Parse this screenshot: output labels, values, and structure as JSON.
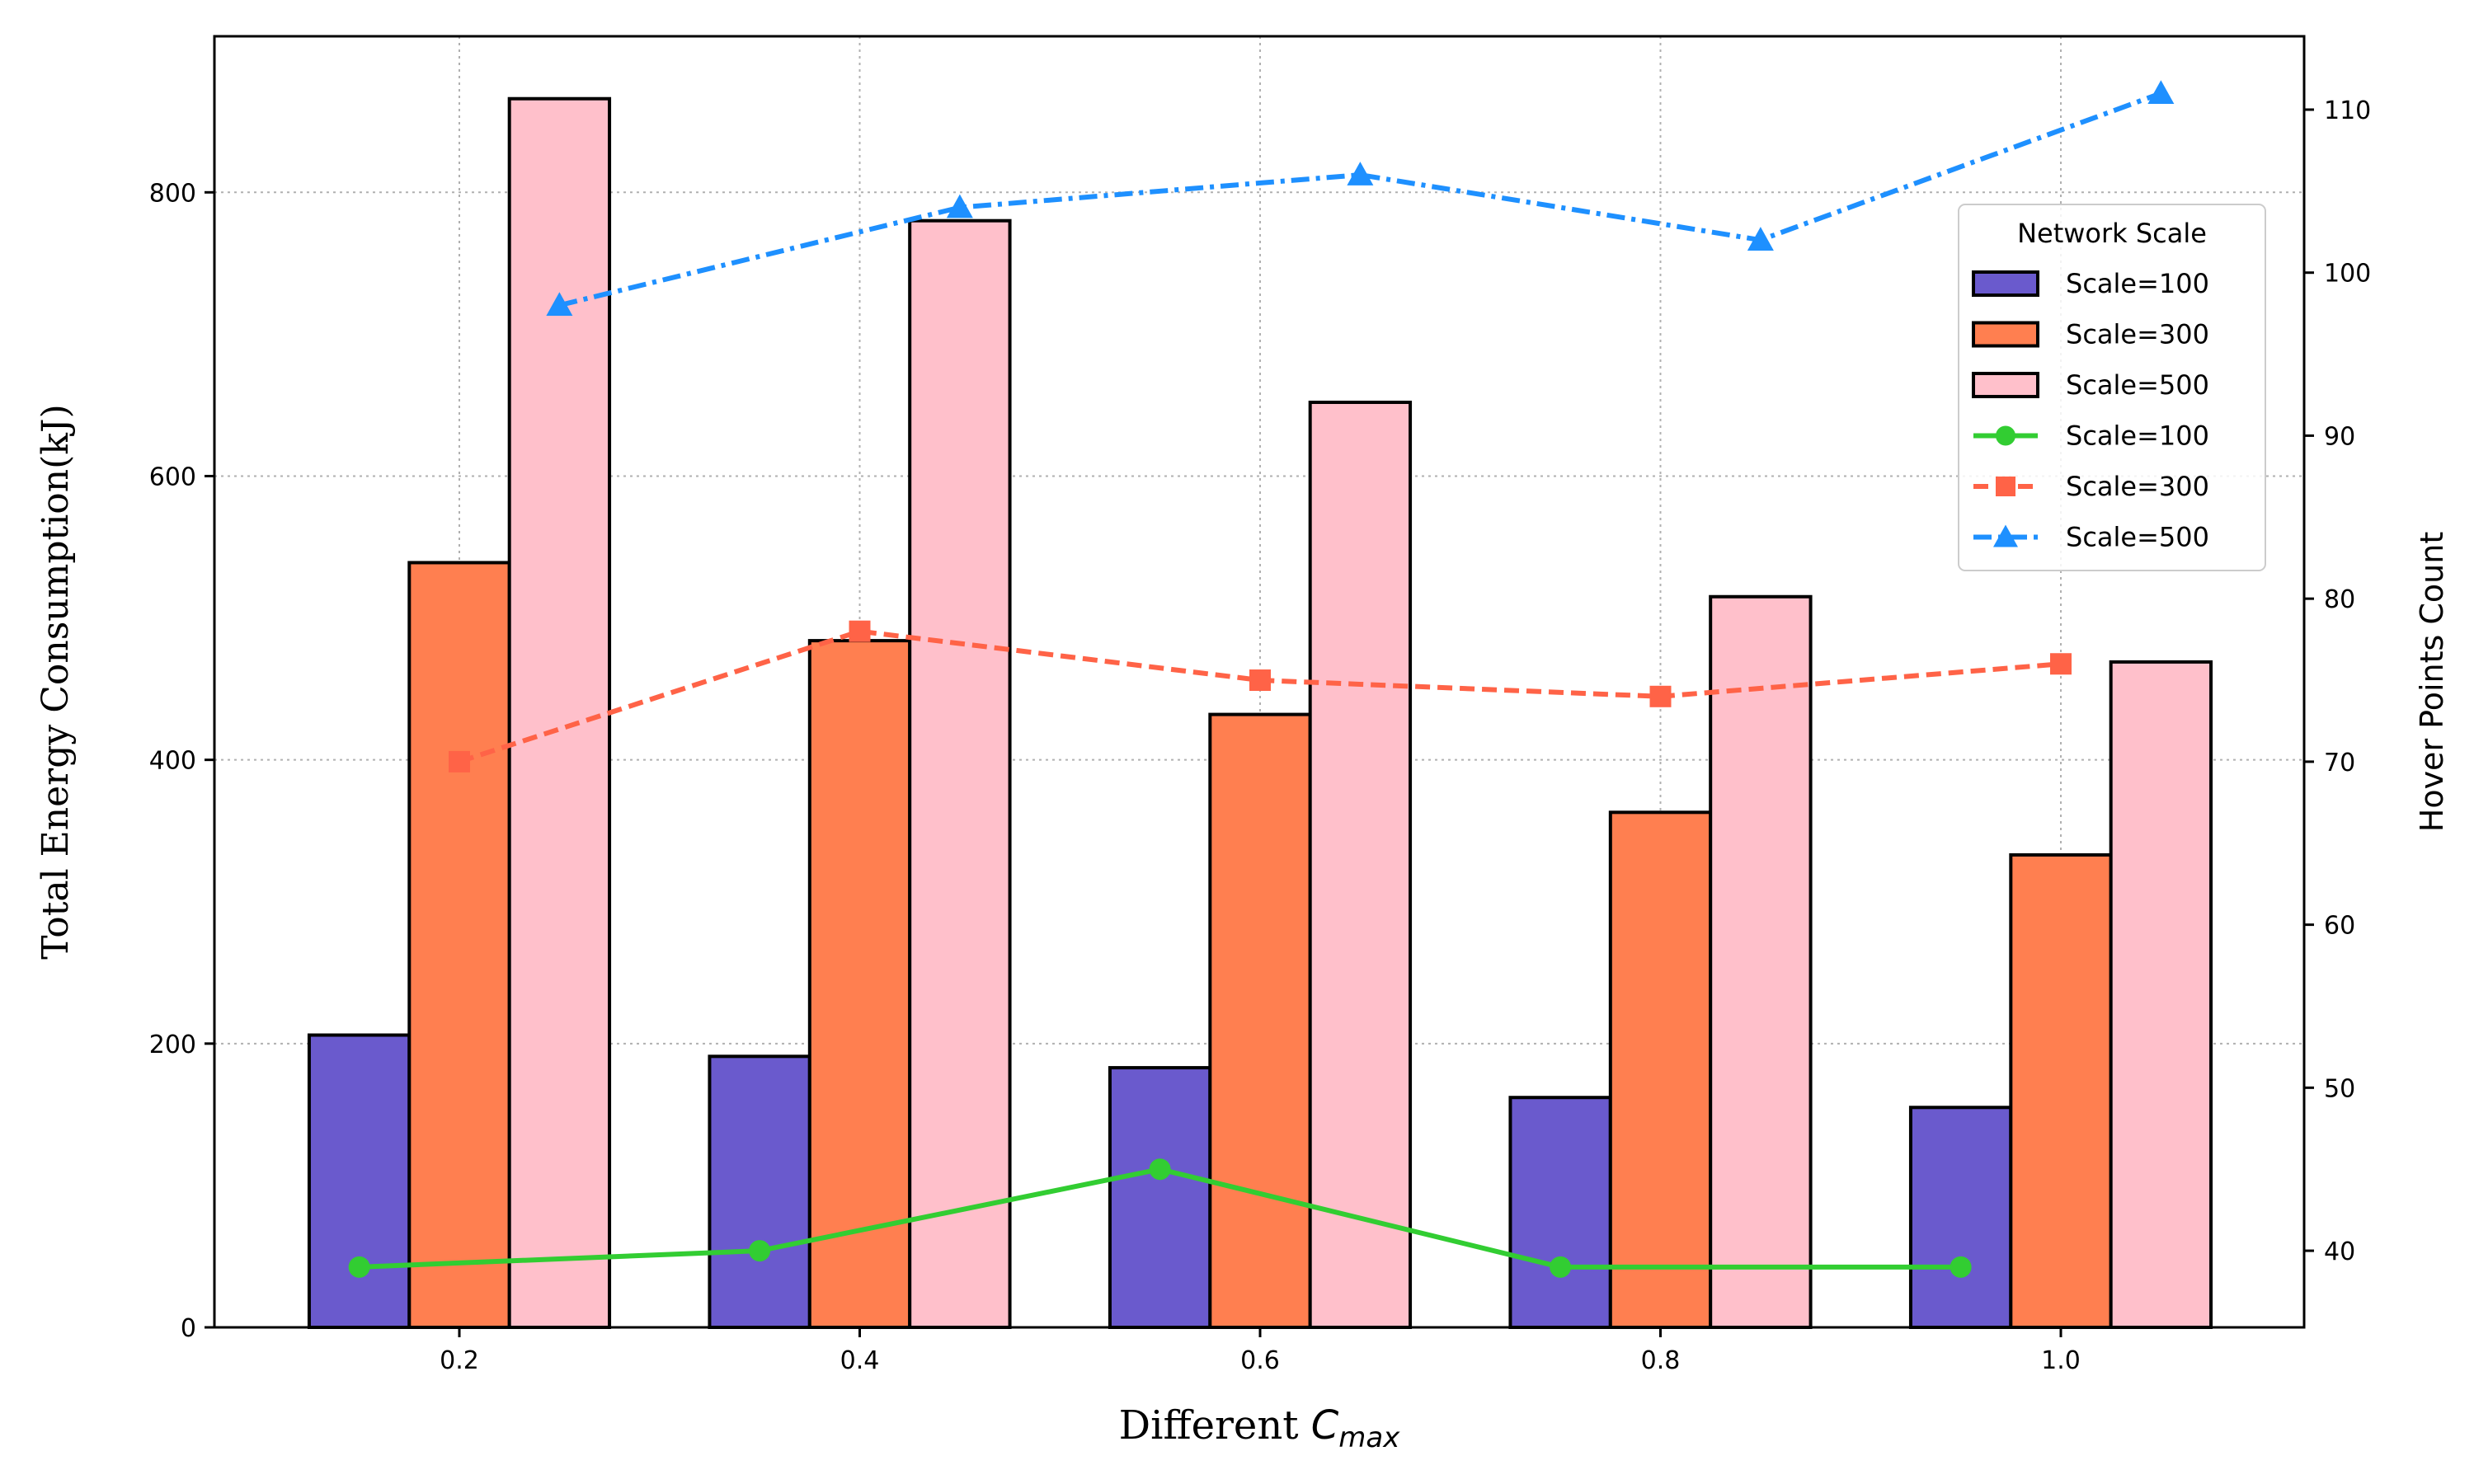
{
  "chart_data": {
    "type": "bar+line",
    "xlabel_prefix": "Different ",
    "xlabel_var": "C",
    "xlabel_sub": "max",
    "ylabel_left": "Total Energy Consumption(kJ)",
    "ylabel_right": "Hover Points Count",
    "categories": [
      "0.2",
      "0.4",
      "0.6",
      "0.8",
      "1.0"
    ],
    "ylim_left": [
      0,
      910
    ],
    "yticks_left": [
      0,
      200,
      400,
      600,
      800
    ],
    "ylim_right": [
      35.3,
      114.5
    ],
    "yticks_right": [
      40,
      50,
      60,
      70,
      80,
      90,
      100,
      110
    ],
    "grid": true,
    "legend_title": "Network Scale",
    "legend_position": "upper-right",
    "bar_series": [
      {
        "name": "Scale=100",
        "color": "#6a5acd",
        "values": [
          206,
          191,
          183,
          162,
          155
        ]
      },
      {
        "name": "Scale=300",
        "color": "#ff7f50",
        "values": [
          539,
          484,
          432,
          363,
          333
        ]
      },
      {
        "name": "Scale=500",
        "color": "#ffc0cb",
        "values": [
          866,
          780,
          652,
          515,
          469
        ]
      }
    ],
    "line_series": [
      {
        "name": "Scale=100",
        "color": "#32cd32",
        "marker": "circle",
        "style": "solid",
        "x_offset": -0.25,
        "values": [
          39,
          40,
          45,
          39,
          39
        ]
      },
      {
        "name": "Scale=300",
        "color": "#ff6347",
        "marker": "square",
        "style": "dashed",
        "x_offset": 0,
        "values": [
          70,
          78,
          75,
          74,
          76
        ]
      },
      {
        "name": "Scale=500",
        "color": "#1e90ff",
        "marker": "triangle",
        "style": "dashdot",
        "x_offset": 0.25,
        "values": [
          98,
          104,
          106,
          102,
          111
        ]
      }
    ]
  }
}
